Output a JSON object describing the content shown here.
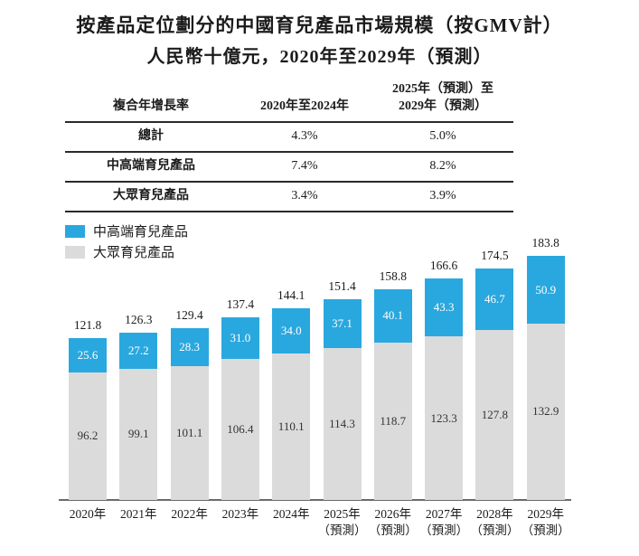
{
  "title": {
    "line1": "按產品定位劃分的中國育兒產品市場規模（按GMV計）",
    "line2": "人民幣十億元，2020年至2029年（預測）"
  },
  "cagr_table": {
    "header": {
      "col1": "複合年增長率",
      "col2": "2020年至2024年",
      "col3_line1": "2025年（預測）至",
      "col3_line2": "2029年（預測）"
    },
    "rows": [
      {
        "label": "總計",
        "col2": "4.3%",
        "col3": "5.0%"
      },
      {
        "label": "中高端育兒產品",
        "col2": "7.4%",
        "col3": "8.2%"
      },
      {
        "label": "大眾育兒產品",
        "col2": "3.4%",
        "col3": "3.9%"
      }
    ]
  },
  "legend": [
    {
      "label": "中高端育兒產品",
      "color": "#29A8DF"
    },
    {
      "label": "大眾育兒產品",
      "color": "#DBDBDB"
    }
  ],
  "chart_data": {
    "type": "bar",
    "stacked": true,
    "title": "按產品定位劃分的中國育兒產品市場規模（按GMV計）",
    "subtitle": "人民幣十億元，2020年至2029年（預測）",
    "ylabel": "人民幣十億元",
    "xlabel": "",
    "ylim": [
      0,
      190
    ],
    "grid": false,
    "legend_position": "top-left",
    "categories": [
      "2020年",
      "2021年",
      "2022年",
      "2023年",
      "2024年",
      "2025年",
      "2026年",
      "2027年",
      "2028年",
      "2029年"
    ],
    "forecast_note": "（預測）",
    "forecast_start_index": 5,
    "series": [
      {
        "name": "中高端育兒產品",
        "color": "#29A8DF",
        "label_color": "#FFFFFF",
        "values": [
          25.6,
          27.2,
          28.3,
          31.0,
          34.0,
          37.1,
          40.1,
          43.3,
          46.7,
          50.9
        ]
      },
      {
        "name": "大眾育兒產品",
        "color": "#DBDBDB",
        "label_color": "#333333",
        "values": [
          96.2,
          99.1,
          101.1,
          106.4,
          110.1,
          114.3,
          118.7,
          123.3,
          127.8,
          132.9
        ]
      }
    ],
    "totals": [
      121.8,
      126.3,
      129.4,
      137.4,
      144.1,
      151.4,
      158.8,
      166.6,
      174.5,
      183.8
    ]
  }
}
